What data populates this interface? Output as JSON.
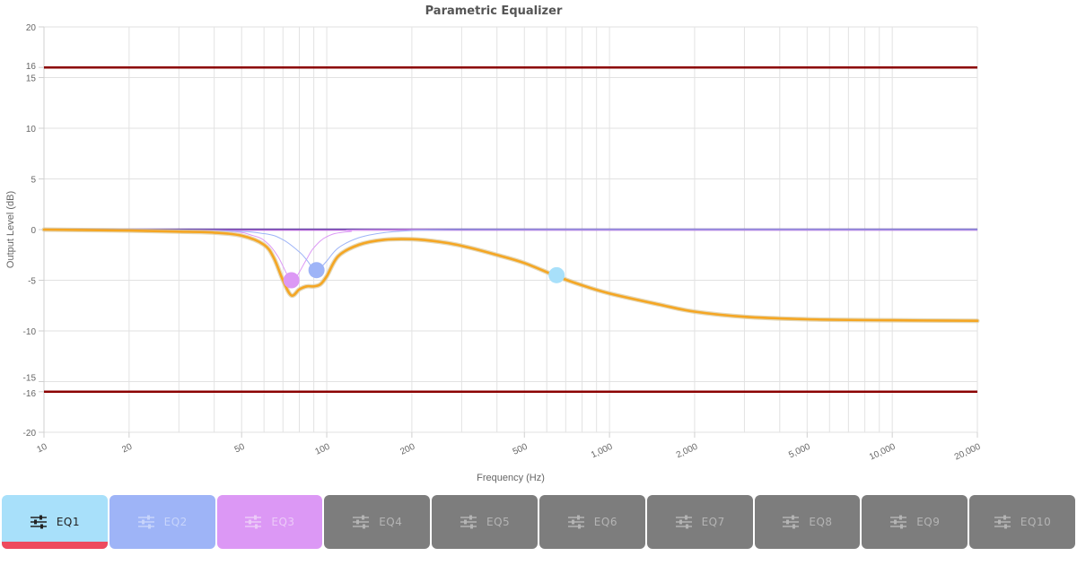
{
  "chart_data": {
    "type": "line",
    "title": "Parametric Equalizer",
    "xlabel": "Frequency (Hz)",
    "ylabel": "Output Level (dB)",
    "x_scale": "log",
    "xlim": [
      10,
      20000
    ],
    "ylim": [
      -20,
      20
    ],
    "x_ticks": [
      10,
      20,
      50,
      100,
      200,
      500,
      1000,
      2000,
      5000,
      10000,
      20000
    ],
    "x_tick_labels": [
      "10",
      "20",
      "50",
      "100",
      "200",
      "500",
      "1,000",
      "2,000",
      "5,000",
      "10,000",
      "20,000"
    ],
    "y_ticks": [
      -20,
      -16,
      -15,
      -10,
      -5,
      0,
      5,
      10,
      15,
      16,
      20
    ],
    "y_tick_labels": [
      "-20",
      "-16",
      "-15",
      "-10",
      "-5",
      "0",
      "5",
      "10",
      "15",
      "16",
      "20"
    ],
    "grid": true,
    "limit_lines": [
      16,
      -16
    ],
    "limit_color": "#8b0000",
    "series": [
      {
        "color": "#f5a623",
        "x": [
          10,
          20,
          30,
          40,
          50,
          60,
          65,
          70,
          75,
          80,
          85,
          90,
          95,
          100,
          110,
          130,
          160,
          200,
          250,
          300,
          400,
          500,
          650,
          800,
          1000,
          1500,
          2000,
          3000,
          5000,
          10000,
          20000
        ],
        "y": [
          0,
          -0.1,
          -0.2,
          -0.3,
          -0.6,
          -1.5,
          -2.8,
          -5.0,
          -6.5,
          -5.9,
          -5.6,
          -5.6,
          -5.4,
          -4.6,
          -2.6,
          -1.5,
          -1.0,
          -0.95,
          -1.2,
          -1.6,
          -2.5,
          -3.3,
          -4.6,
          -5.5,
          -6.3,
          -7.4,
          -8.1,
          -8.6,
          -8.85,
          -8.95,
          -9.0
        ]
      },
      {
        "color": "#9eb4f7",
        "x": [
          10,
          40,
          60,
          70,
          80,
          85,
          88,
          90,
          92,
          95,
          100,
          110,
          130,
          160,
          200,
          300,
          1000,
          20000
        ],
        "y": [
          0,
          -0.1,
          -0.4,
          -1.0,
          -2.2,
          -3.0,
          -3.6,
          -3.9,
          -4.0,
          -3.8,
          -3.1,
          -1.8,
          -0.8,
          -0.3,
          -0.1,
          0,
          0,
          0
        ]
      },
      {
        "color": "#dc98f5",
        "x": [
          10,
          40,
          55,
          62,
          67,
          70,
          72,
          74,
          76,
          78,
          80,
          85,
          90,
          100,
          120,
          200,
          20000
        ],
        "y": [
          0,
          -0.1,
          -0.6,
          -1.4,
          -2.6,
          -3.6,
          -4.3,
          -4.8,
          -5.0,
          -4.7,
          -4.2,
          -2.9,
          -1.8,
          -0.7,
          -0.2,
          0,
          0
        ]
      }
    ],
    "flat_series_colors": [
      "#6b4ca8",
      "#b061d6"
    ],
    "handles": [
      {
        "x": 75,
        "y": -5,
        "color": "#dc98f5"
      },
      {
        "x": 92,
        "y": -4,
        "color": "#9eb4f7"
      },
      {
        "x": 650,
        "y": -4.5,
        "color": "#a8e0fa"
      }
    ]
  },
  "eq_tabs": [
    {
      "label": "EQ1",
      "bg": "#a8e0fa",
      "fg": "#222222",
      "active": true,
      "active_color": "#ee4a5e"
    },
    {
      "label": "EQ2",
      "bg": "#9eb4f7",
      "fg": "#c7d4fb",
      "active": false
    },
    {
      "label": "EQ3",
      "bg": "#dc98f5",
      "fg": "#eccaf8",
      "active": false
    },
    {
      "label": "EQ4",
      "bg": "#7d7d7d",
      "fg": "#b4b4b4",
      "active": false
    },
    {
      "label": "EQ5",
      "bg": "#7d7d7d",
      "fg": "#b4b4b4",
      "active": false
    },
    {
      "label": "EQ6",
      "bg": "#7d7d7d",
      "fg": "#b4b4b4",
      "active": false
    },
    {
      "label": "EQ7",
      "bg": "#7d7d7d",
      "fg": "#b4b4b4",
      "active": false
    },
    {
      "label": "EQ8",
      "bg": "#7d7d7d",
      "fg": "#b4b4b4",
      "active": false
    },
    {
      "label": "EQ9",
      "bg": "#7d7d7d",
      "fg": "#b4b4b4",
      "active": false
    },
    {
      "label": "EQ10",
      "bg": "#7d7d7d",
      "fg": "#b4b4b4",
      "active": false
    }
  ],
  "tab_icon": "sliders-icon"
}
